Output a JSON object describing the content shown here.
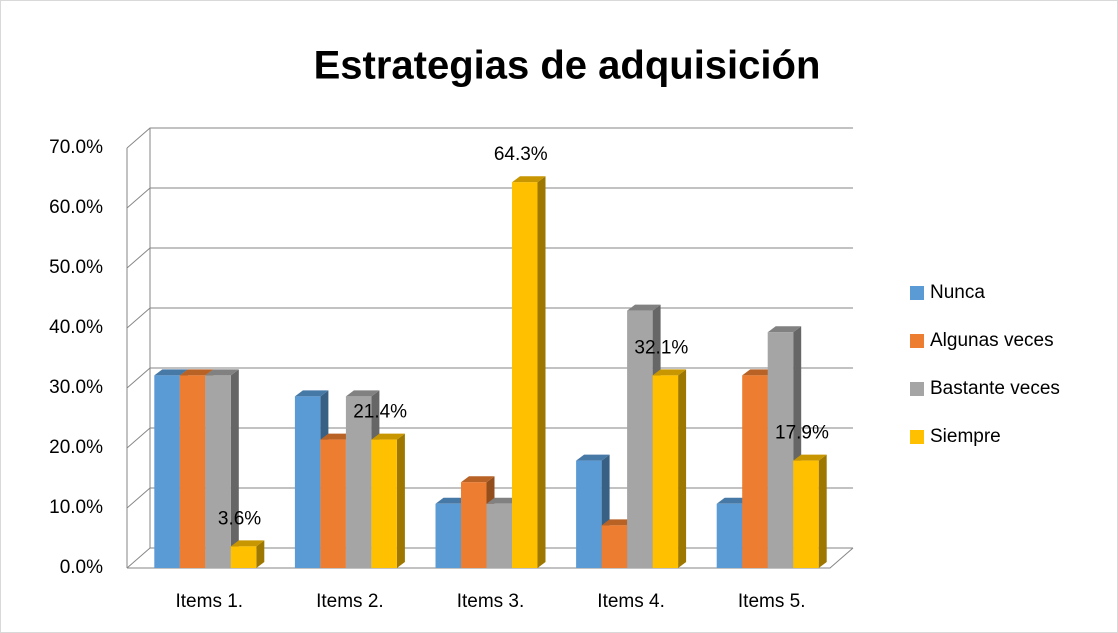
{
  "chart_data": {
    "type": "bar3d",
    "title": "Estrategias de adquisición",
    "categories": [
      "Items 1.",
      "Items 2.",
      "Items 3.",
      "Items 4.",
      "Items 5."
    ],
    "series": [
      {
        "name": "Nunca",
        "color": "#5b9bd5",
        "values": [
          32.1,
          28.6,
          10.7,
          17.9,
          10.7
        ]
      },
      {
        "name": "Algunas veces",
        "color": "#ed7d31",
        "values": [
          32.1,
          21.4,
          14.3,
          7.1,
          32.1
        ]
      },
      {
        "name": "Bastante veces",
        "color": "#a5a5a5",
        "values": [
          32.1,
          28.6,
          10.7,
          42.9,
          39.3
        ]
      },
      {
        "name": "Siempre",
        "color": "#ffc000",
        "values": [
          3.6,
          21.4,
          64.3,
          32.1,
          17.9
        ],
        "value_labels": [
          "3.6%",
          "21.4%",
          "64.3%",
          "32.1%",
          "17.9%"
        ]
      }
    ],
    "ylim": [
      0,
      70
    ],
    "yticks": [
      {
        "value": 0,
        "label": "0.0%"
      },
      {
        "value": 10,
        "label": "10.0%"
      },
      {
        "value": 20,
        "label": "20.0%"
      },
      {
        "value": 30,
        "label": "30.0%"
      },
      {
        "value": 40,
        "label": "40.0%"
      },
      {
        "value": 50,
        "label": "50.0%"
      },
      {
        "value": 60,
        "label": "60.0%"
      },
      {
        "value": 70,
        "label": "70.0%"
      }
    ],
    "grid": true,
    "legend": "right"
  }
}
